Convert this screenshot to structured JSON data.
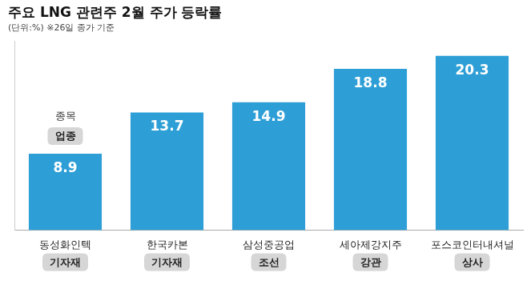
{
  "chart_data": {
    "type": "bar",
    "title": "주요 LNG 관련주 2월 주가 등락률",
    "subtitle": "(단위:%) ※26일 종가 기준",
    "category_caption": "종목",
    "sector_caption": "업종",
    "categories": [
      "동성화인텍",
      "한국카본",
      "삼성중공업",
      "세아제강지주",
      "포스코인터내셔널"
    ],
    "sectors": [
      "기자재",
      "기자재",
      "조선",
      "강관",
      "상사"
    ],
    "values": [
      8.9,
      13.7,
      14.9,
      18.8,
      20.3
    ],
    "color": "#2e9fd6",
    "ylim": [
      0,
      22
    ],
    "grid": false,
    "data_labels": true,
    "tick_labels": "x"
  }
}
